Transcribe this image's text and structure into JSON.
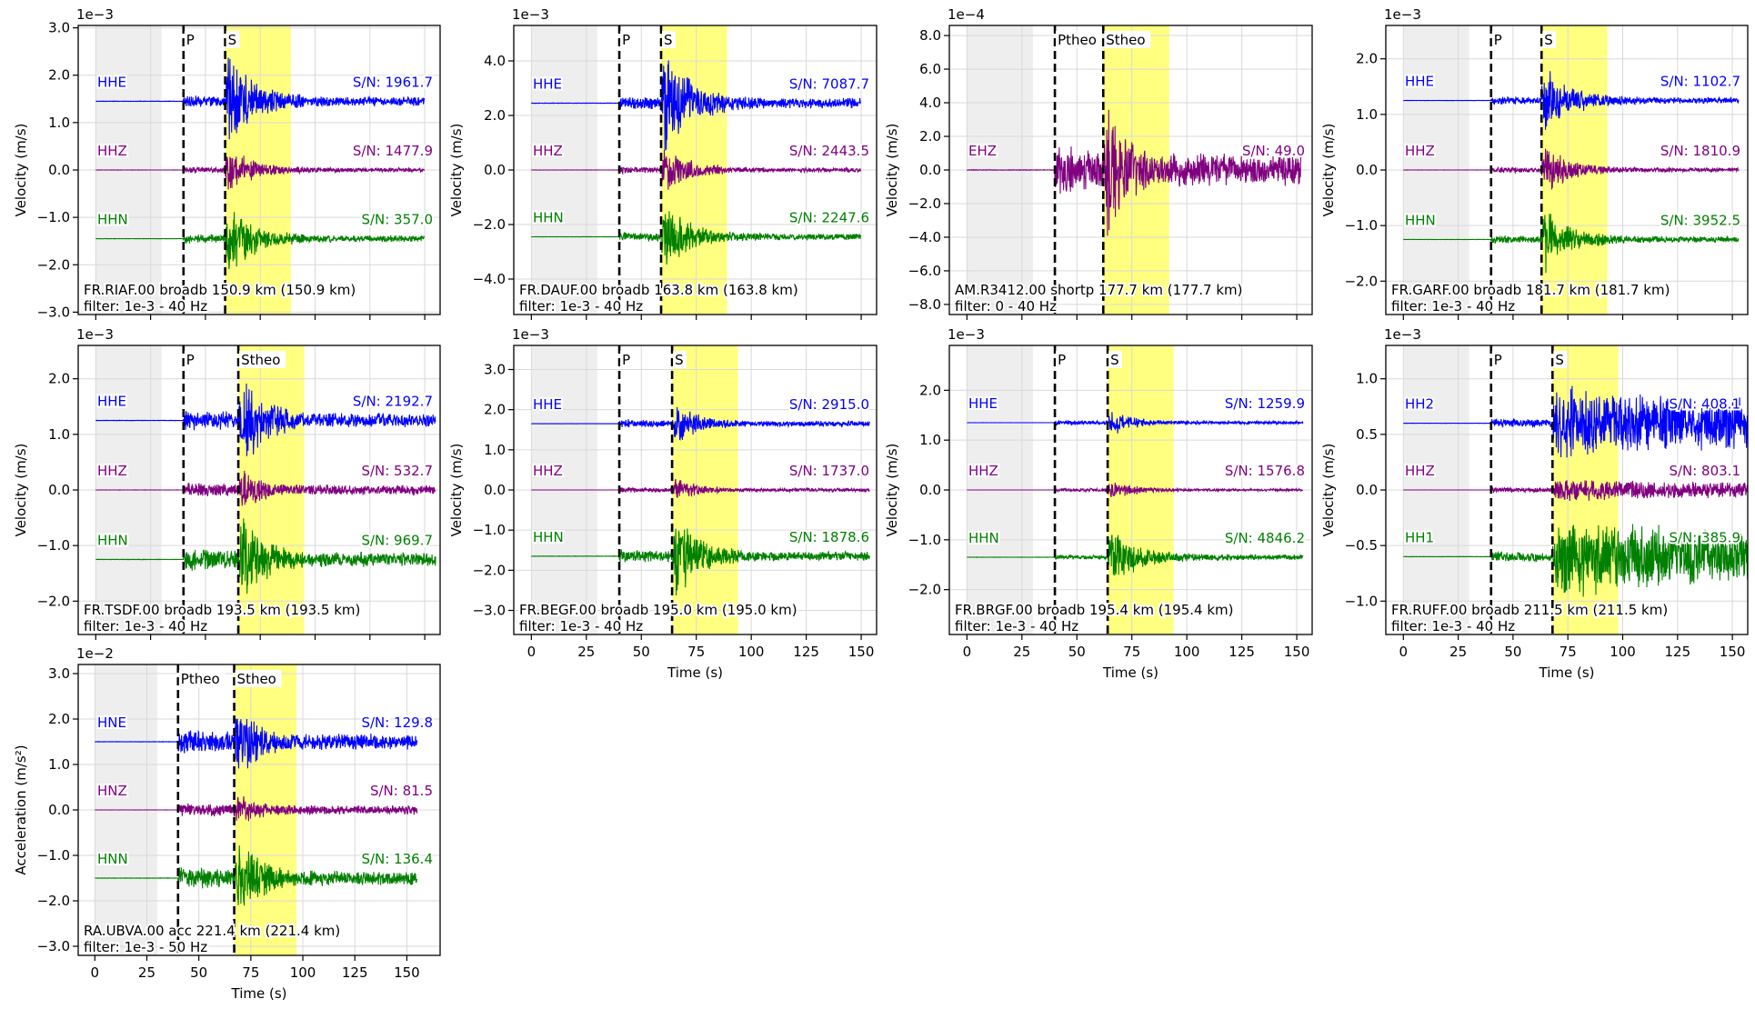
{
  "colors": {
    "channel1": "#0000ff",
    "channel2": "#800080",
    "channel3": "#008000",
    "noise_window": "#eeeeee",
    "signal_window": "#ffff80",
    "pick_line": "#000000",
    "grid": "#d9d9d9"
  },
  "chart_data": [
    {
      "type": "line",
      "station": "FR.RIAF.00",
      "info": "FR.RIAF.00 broadb 150.9 km (150.9 km)",
      "filter": "filter: 1e-3 - 40 Hz",
      "ylabel": "Velocity (m/s)",
      "xlabel": "",
      "exponent": "1e−3",
      "xlim": [
        -8,
        157
      ],
      "ylim": [
        -3.05,
        3.05
      ],
      "yticks": [
        "3.0",
        "2.0",
        "1.0",
        "0.0",
        "−1.0",
        "−2.0",
        "−3.0"
      ],
      "ytick_values": [
        3,
        2,
        1,
        0,
        -1,
        -2,
        -3
      ],
      "xticks": [
        "0",
        "25",
        "50",
        "75",
        "100",
        "125",
        "150"
      ],
      "xtick_values": [
        0,
        25,
        50,
        75,
        100,
        125,
        150
      ],
      "show_xticklabels": false,
      "noise_window": [
        0,
        30
      ],
      "signal_window": [
        59,
        89
      ],
      "picks": [
        {
          "label": "P",
          "t": 40
        },
        {
          "label": "S",
          "t": 59
        }
      ],
      "t_end": 150,
      "series": [
        {
          "name": "HHE",
          "snr": "S/N: 1961.7",
          "offset": 1.45,
          "amp": 1.25,
          "color": "#0000ff"
        },
        {
          "name": "HHZ",
          "snr": "S/N: 1477.9",
          "offset": 0.0,
          "amp": 0.6,
          "color": "#800080"
        },
        {
          "name": "HHN",
          "snr": "S/N: 357.0",
          "offset": -1.45,
          "amp": 0.95,
          "color": "#008000"
        }
      ]
    },
    {
      "type": "line",
      "station": "FR.DAUF.00",
      "info": "FR.DAUF.00 broadb 163.8 km (163.8 km)",
      "filter": "filter: 1e-3 - 40 Hz",
      "ylabel": "Velocity (m/s)",
      "xlabel": "",
      "exponent": "1e−3",
      "xlim": [
        -8,
        157
      ],
      "ylim": [
        -5.3,
        5.3
      ],
      "yticks": [
        "4.0",
        "2.0",
        "0.0",
        "−2.0",
        "−4.0"
      ],
      "ytick_values": [
        4,
        2,
        0,
        -2,
        -4
      ],
      "xticks": [
        "0",
        "25",
        "50",
        "75",
        "100",
        "125",
        "150"
      ],
      "xtick_values": [
        0,
        25,
        50,
        75,
        100,
        125,
        150
      ],
      "show_xticklabels": false,
      "noise_window": [
        0,
        30
      ],
      "signal_window": [
        59,
        89
      ],
      "picks": [
        {
          "label": "P",
          "t": 40
        },
        {
          "label": "S",
          "t": 59
        }
      ],
      "t_end": 150,
      "series": [
        {
          "name": "HHE",
          "snr": "S/N: 7087.7",
          "offset": 2.45,
          "amp": 2.5,
          "color": "#0000ff"
        },
        {
          "name": "HHZ",
          "snr": "S/N: 2443.5",
          "offset": 0.0,
          "amp": 1.1,
          "color": "#800080"
        },
        {
          "name": "HHN",
          "snr": "S/N: 2247.6",
          "offset": -2.45,
          "amp": 1.6,
          "color": "#008000"
        }
      ]
    },
    {
      "type": "line",
      "station": "AM.R3412.00",
      "info": "AM.R3412.00 shortp 177.7 km (177.7 km)",
      "filter": "filter: 0 - 40 Hz",
      "ylabel": "Velocity (m/s)",
      "xlabel": "",
      "exponent": "1e−4",
      "xlim": [
        -8,
        157
      ],
      "ylim": [
        -8.6,
        8.6
      ],
      "yticks": [
        "8.0",
        "6.0",
        "4.0",
        "2.0",
        "0.0",
        "−2.0",
        "−4.0",
        "−6.0",
        "−8.0"
      ],
      "ytick_values": [
        8,
        6,
        4,
        2,
        0,
        -2,
        -4,
        -6,
        -8
      ],
      "xticks": [
        "0",
        "25",
        "50",
        "75",
        "100",
        "125",
        "150"
      ],
      "xtick_values": [
        0,
        25,
        50,
        75,
        100,
        125,
        150
      ],
      "show_xticklabels": false,
      "noise_window": [
        0,
        30
      ],
      "signal_window": [
        62,
        92
      ],
      "picks": [
        {
          "label": "Ptheo",
          "t": 40
        },
        {
          "label": "Stheo",
          "t": 62
        }
      ],
      "t_end": 152,
      "series": [
        {
          "name": "EHZ",
          "snr": "S/N: 49.0",
          "offset": 0.0,
          "amp": 5.0,
          "color": "#800080",
          "pamp": 1.6
        }
      ]
    },
    {
      "type": "line",
      "station": "FR.GARF.00",
      "info": "FR.GARF.00 broadb 181.7 km (181.7 km)",
      "filter": "filter: 1e-3 - 40 Hz",
      "ylabel": "Velocity (m/s)",
      "xlabel": "",
      "exponent": "1e−3",
      "xlim": [
        -8,
        157
      ],
      "ylim": [
        -2.6,
        2.6
      ],
      "yticks": [
        "2.0",
        "1.0",
        "0.0",
        "−1.0",
        "−2.0"
      ],
      "ytick_values": [
        2,
        1,
        0,
        -1,
        -2
      ],
      "xticks": [
        "0",
        "25",
        "50",
        "75",
        "100",
        "125",
        "150"
      ],
      "xtick_values": [
        0,
        25,
        50,
        75,
        100,
        125,
        150
      ],
      "show_xticklabels": false,
      "noise_window": [
        0,
        30
      ],
      "signal_window": [
        63,
        93
      ],
      "picks": [
        {
          "label": "P",
          "t": 40
        },
        {
          "label": "S",
          "t": 63
        }
      ],
      "t_end": 153,
      "series": [
        {
          "name": "HHE",
          "snr": "S/N: 1102.7",
          "offset": 1.25,
          "amp": 0.75,
          "color": "#0000ff"
        },
        {
          "name": "HHZ",
          "snr": "S/N: 1810.9",
          "offset": 0.0,
          "amp": 0.5,
          "color": "#800080"
        },
        {
          "name": "HHN",
          "snr": "S/N: 3952.5",
          "offset": -1.25,
          "amp": 0.7,
          "color": "#008000"
        }
      ]
    },
    {
      "type": "line",
      "station": "FR.TSDF.00",
      "info": "FR.TSDF.00 broadb 193.5 km (193.5 km)",
      "filter": "filter: 1e-3 - 40 Hz",
      "ylabel": "Velocity (m/s)",
      "xlabel": "",
      "exponent": "1e−3",
      "xlim": [
        -8,
        157
      ],
      "ylim": [
        -2.6,
        2.6
      ],
      "yticks": [
        "2.0",
        "1.0",
        "0.0",
        "−1.0",
        "−2.0"
      ],
      "ytick_values": [
        2,
        1,
        0,
        -1,
        -2
      ],
      "xticks": [
        "0",
        "25",
        "50",
        "75",
        "100",
        "125",
        "150"
      ],
      "xtick_values": [
        0,
        25,
        50,
        75,
        100,
        125,
        150
      ],
      "show_xticklabels": false,
      "noise_window": [
        0,
        30
      ],
      "signal_window": [
        65,
        95
      ],
      "picks": [
        {
          "label": "P",
          "t": 40
        },
        {
          "label": "Stheo",
          "t": 65
        }
      ],
      "t_end": 155,
      "series": [
        {
          "name": "HHE",
          "snr": "S/N: 2192.7",
          "offset": 1.25,
          "amp": 1.05,
          "color": "#0000ff",
          "pamp": 0.22
        },
        {
          "name": "HHZ",
          "snr": "S/N: 532.7",
          "offset": 0.0,
          "amp": 0.45,
          "color": "#800080",
          "pamp": 0.15
        },
        {
          "name": "HHN",
          "snr": "S/N: 969.7",
          "offset": -1.25,
          "amp": 1.05,
          "color": "#008000",
          "pamp": 0.22
        }
      ]
    },
    {
      "type": "line",
      "station": "FR.BEGF.00",
      "info": "FR.BEGF.00 broadb 195.0 km (195.0 km)",
      "filter": "filter: 1e-3 - 40 Hz",
      "ylabel": "Velocity (m/s)",
      "xlabel": "Time (s)",
      "exponent": "1e−3",
      "xlim": [
        -8,
        157
      ],
      "ylim": [
        -3.6,
        3.6
      ],
      "yticks": [
        "3.0",
        "2.0",
        "1.0",
        "0.0",
        "−1.0",
        "−2.0",
        "−3.0"
      ],
      "ytick_values": [
        3,
        2,
        1,
        0,
        -1,
        -2,
        -3
      ],
      "xticks": [
        "0",
        "25",
        "50",
        "75",
        "100",
        "125",
        "150"
      ],
      "xtick_values": [
        0,
        25,
        50,
        75,
        100,
        125,
        150
      ],
      "show_xticklabels": true,
      "noise_window": [
        0,
        30
      ],
      "signal_window": [
        64,
        94
      ],
      "picks": [
        {
          "label": "P",
          "t": 40
        },
        {
          "label": "S",
          "t": 64
        }
      ],
      "t_end": 154,
      "series": [
        {
          "name": "HHE",
          "snr": "S/N: 2915.0",
          "offset": 1.65,
          "amp": 0.65,
          "color": "#0000ff",
          "pamp": 0.12
        },
        {
          "name": "HHZ",
          "snr": "S/N: 1737.0",
          "offset": 0.0,
          "amp": 0.35,
          "color": "#800080",
          "pamp": 0.08
        },
        {
          "name": "HHN",
          "snr": "S/N: 1878.6",
          "offset": -1.65,
          "amp": 1.3,
          "color": "#008000",
          "pamp": 0.2
        }
      ]
    },
    {
      "type": "line",
      "station": "FR.BRGF.00",
      "info": "FR.BRGF.00 broadb 195.4 km (195.4 km)",
      "filter": "filter: 1e-3 - 40 Hz",
      "ylabel": "Velocity (m/s)",
      "xlabel": "Time (s)",
      "exponent": "1e−3",
      "xlim": [
        -8,
        157
      ],
      "ylim": [
        -2.9,
        2.9
      ],
      "yticks": [
        "2.0",
        "1.0",
        "0.0",
        "−1.0",
        "−2.0"
      ],
      "ytick_values": [
        2,
        1,
        0,
        -1,
        -2
      ],
      "xticks": [
        "0",
        "25",
        "50",
        "75",
        "100",
        "125",
        "150"
      ],
      "xtick_values": [
        0,
        25,
        50,
        75,
        100,
        125,
        150
      ],
      "show_xticklabels": true,
      "noise_window": [
        0,
        30
      ],
      "signal_window": [
        64,
        94
      ],
      "picks": [
        {
          "label": "P",
          "t": 40
        },
        {
          "label": "S",
          "t": 64
        }
      ],
      "t_end": 153,
      "series": [
        {
          "name": "HHE",
          "snr": "S/N: 1259.9",
          "offset": 1.35,
          "amp": 0.3,
          "color": "#0000ff",
          "pamp": 0.05
        },
        {
          "name": "HHZ",
          "snr": "S/N: 1576.8",
          "offset": 0.0,
          "amp": 0.25,
          "color": "#800080",
          "pamp": 0.04
        },
        {
          "name": "HHN",
          "snr": "S/N: 4846.2",
          "offset": -1.35,
          "amp": 0.75,
          "color": "#008000",
          "pamp": 0.05
        }
      ]
    },
    {
      "type": "line",
      "station": "FR.RUFF.00",
      "info": "FR.RUFF.00 broadb 211.5 km (211.5 km)",
      "filter": "filter: 1e-3 - 40 Hz",
      "ylabel": "Velocity (m/s)",
      "xlabel": "Time (s)",
      "exponent": "1e−3",
      "xlim": [
        -8,
        157
      ],
      "ylim": [
        -1.3,
        1.3
      ],
      "yticks": [
        "1.0",
        "0.5",
        "0.0",
        "−0.5",
        "−1.0"
      ],
      "ytick_values": [
        1,
        0.5,
        0,
        -0.5,
        -1
      ],
      "xticks": [
        "0",
        "25",
        "50",
        "75",
        "100",
        "125",
        "150"
      ],
      "xtick_values": [
        0,
        25,
        50,
        75,
        100,
        125,
        150
      ],
      "show_xticklabels": true,
      "noise_window": [
        0,
        30
      ],
      "signal_window": [
        68,
        98
      ],
      "picks": [
        {
          "label": "P",
          "t": 40
        },
        {
          "label": "S",
          "t": 68
        }
      ],
      "t_end": 159,
      "series": [
        {
          "name": "HH2",
          "snr": "S/N: 408.1",
          "offset": 0.6,
          "amp": 0.38,
          "color": "#0000ff",
          "pamp": 0.05,
          "sustain": true
        },
        {
          "name": "HHZ",
          "snr": "S/N: 803.1",
          "offset": 0.0,
          "amp": 0.12,
          "color": "#800080",
          "pamp": 0.03,
          "sustain": true
        },
        {
          "name": "HH1",
          "snr": "S/N: 385.9",
          "offset": -0.6,
          "amp": 0.42,
          "color": "#008000",
          "pamp": 0.06,
          "sustain": true
        }
      ]
    },
    {
      "type": "line",
      "station": "RA.UBVA.00",
      "info": "RA.UBVA.00 acc 221.4 km (221.4 km)",
      "filter": "filter: 1e-3 - 50 Hz",
      "ylabel": "Acceleration (m/s²)",
      "xlabel": "Time (s)",
      "exponent": "1e−2",
      "xlim": [
        -8,
        166
      ],
      "ylim": [
        -3.2,
        3.2
      ],
      "yticks": [
        "3.0",
        "2.0",
        "1.0",
        "0.0",
        "−1.0",
        "−2.0",
        "−3.0"
      ],
      "ytick_values": [
        3,
        2,
        1,
        0,
        -1,
        -2,
        -3
      ],
      "xticks": [
        "0",
        "25",
        "50",
        "75",
        "100",
        "125",
        "150"
      ],
      "xtick_values": [
        0,
        25,
        50,
        75,
        100,
        125,
        150
      ],
      "show_xticklabels": true,
      "noise_window": [
        0,
        30
      ],
      "signal_window": [
        67,
        97
      ],
      "picks": [
        {
          "label": "Ptheo",
          "t": 40
        },
        {
          "label": "Stheo",
          "t": 67
        }
      ],
      "t_end": 155,
      "series": [
        {
          "name": "HNE",
          "snr": "S/N: 129.8",
          "offset": 1.5,
          "amp": 1.1,
          "color": "#0000ff",
          "pamp": 0.3
        },
        {
          "name": "HNZ",
          "snr": "S/N: 81.5",
          "offset": 0.0,
          "amp": 0.45,
          "color": "#800080",
          "pamp": 0.18
        },
        {
          "name": "HNN",
          "snr": "S/N: 136.4",
          "offset": -1.5,
          "amp": 1.15,
          "color": "#008000",
          "pamp": 0.28
        }
      ]
    }
  ]
}
